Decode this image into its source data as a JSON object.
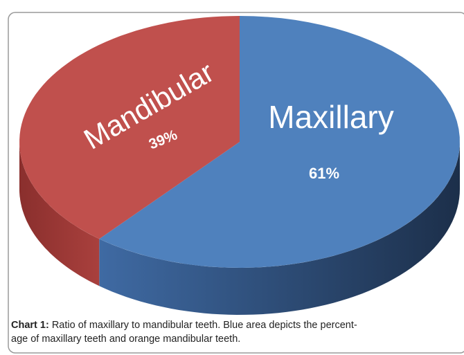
{
  "chart_data": {
    "type": "pie",
    "categories": [
      "Maxillary",
      "Mandibular"
    ],
    "values": [
      61,
      39
    ],
    "value_labels": [
      "61%",
      "39%"
    ],
    "colors": [
      "#4f81bd",
      "#c0504d"
    ],
    "caption_label": "Chart 1:",
    "caption_lines": [
      "Ratio of maxillary to mandibular teeth. Blue area depicts the percent-",
      "age of maxillary teeth and orange mandibular teeth."
    ]
  }
}
